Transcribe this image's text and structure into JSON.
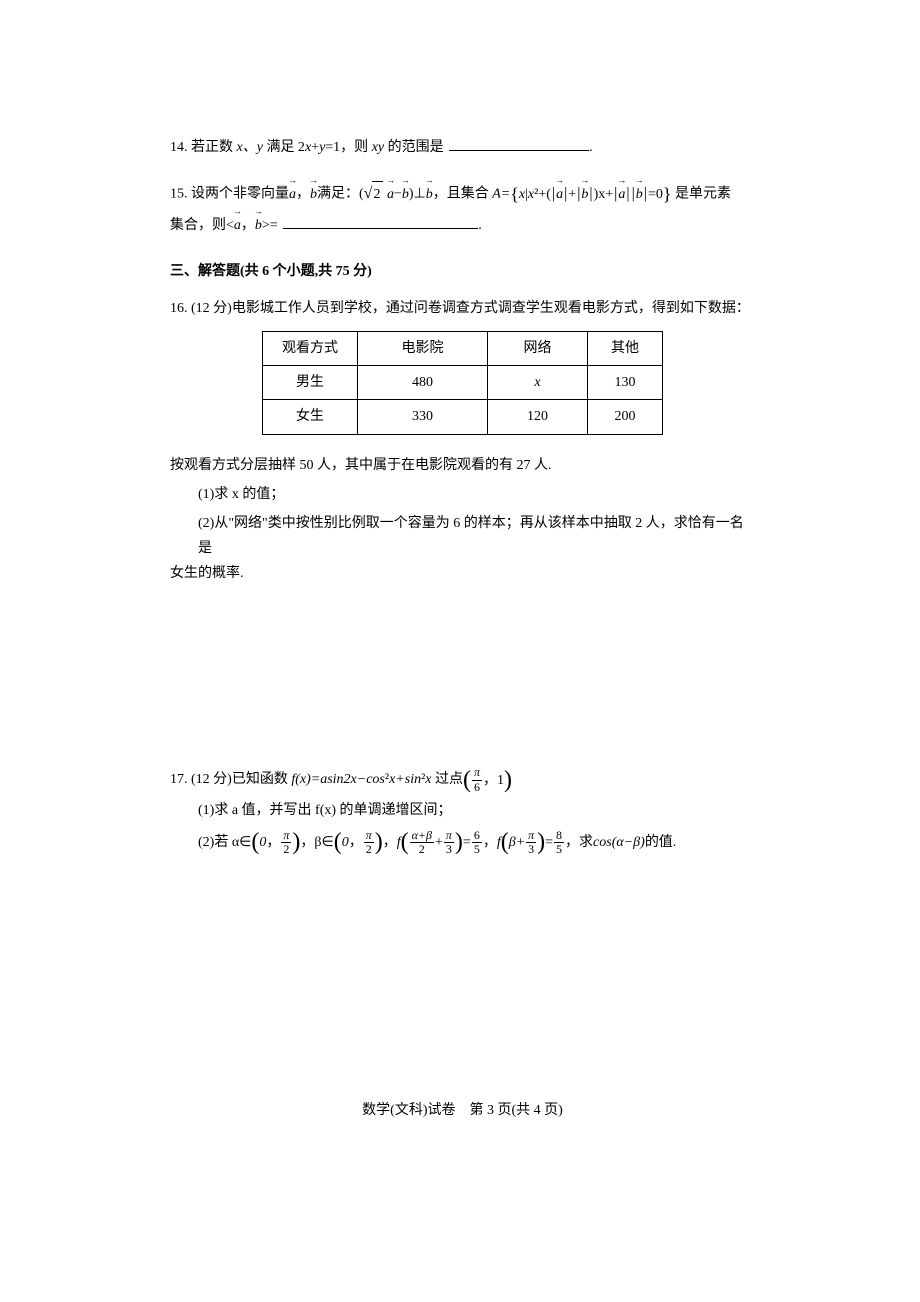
{
  "p14": {
    "num": "14.",
    "text_a": " 若正数 ",
    "var_xy": "x、y",
    "text_b": " 满足 2",
    "var_x": "x",
    "text_c": "+",
    "var_y": "y",
    "text_d": "=1，则 ",
    "var_xy2": "xy",
    "text_e": " 的范围是 ",
    "period": "."
  },
  "p15": {
    "num": "15.",
    "text_a": " 设两个非零向量",
    "vec_a1": "a",
    "comma1": "，",
    "vec_b1": "b",
    "text_b": "满足：(",
    "sqrt2": "2",
    "nbsp": " ",
    "vec_a2": "a",
    "minus": "−",
    "vec_b2": "b",
    "text_c": ")⊥",
    "vec_b3": "b",
    "text_d": "，且集合 ",
    "A_eq": "A=",
    "set_x": "x",
    "set_bar": "|",
    "set_x2": "x",
    "set_sq": "²",
    "set_plus1": "+(",
    "vec_a3": "a",
    "set_plus2": "+",
    "vec_b4": "b",
    "set_xplus": ")x+",
    "vec_a4": "a",
    "vec_b5": "b",
    "set_eq0": "=0",
    "text_e": " 是单元素",
    "line2_a": "集合，则<",
    "vec_a5": "a",
    "line2_comma": "，",
    "vec_b6": "b",
    "line2_b": ">= ",
    "line2_period": "."
  },
  "section3": "三、解答题(共 6 个小题,共 75 分)",
  "p16": {
    "num": "16.",
    "text_a": " (12 分)电影城工作人员到学校，通过问卷调查方式调查学生观看电影方式，得到如下数据：",
    "table": {
      "headers": [
        "观看方式",
        "电影院",
        "网络",
        "其他"
      ],
      "rows": [
        [
          "男生",
          "480",
          "x",
          "130"
        ],
        [
          "女生",
          "330",
          "120",
          "200"
        ]
      ]
    },
    "after_table": "按观看方式分层抽样 50 人，其中属于在电影院观看的有 27 人.",
    "sub1": "(1)求 x 的值；",
    "sub2_a": "(2)从\"网络\"类中按性别比例取一个容量为 6 的样本；再从该样本中抽取 2 人，求恰有一名是",
    "sub2_b": "女生的概率."
  },
  "p17": {
    "num": "17.",
    "text_a": " (12 分)已知函数 ",
    "fx": "f(x)=asin",
    "two_x": "2x",
    "minus_cos": "−cos",
    "sq": "²",
    "x_plus": "x+sin",
    "x_end": "x",
    "text_pass": " 过点",
    "pi": "π",
    "six": "6",
    "pt_comma": "，1",
    "sub1": "(1)求 a 值，并写出 f(x) 的单调递增区间；",
    "sub2_a": "(2)若 α∈",
    "zero": "0",
    "two": "2",
    "comma": "，",
    "sub2_b": "β∈",
    "sub2_c": "f",
    "ab": "α+β",
    "plus": "+",
    "three": "3",
    "eq65_n": "6",
    "eq65_d": "5",
    "eq": "=",
    "beta_plus": "β+",
    "eq85_n": "8",
    "eq85_d": "5",
    "sub2_d": "，求 ",
    "cos": "cos(α−β)",
    "sub2_e": "的值."
  },
  "footer": "数学(文科)试卷　第 3 页(共 4 页)"
}
